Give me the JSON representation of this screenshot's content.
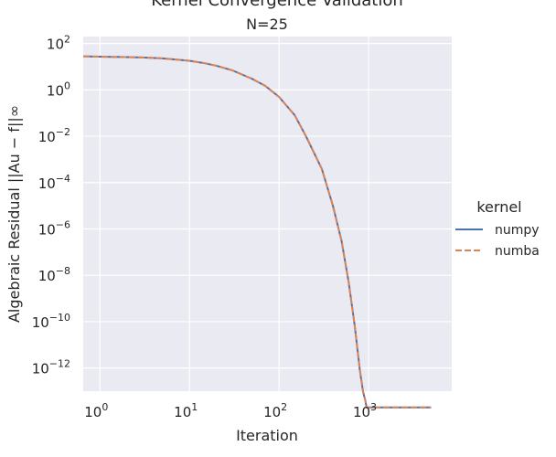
{
  "chart_data": {
    "type": "line",
    "title": "Kernel Convergence Validation",
    "subtitle": "N=25",
    "xlabel": "Iteration",
    "ylabel": "Algebraic Residual ||Au − f||∞",
    "xscale": "log",
    "yscale": "log",
    "xlim": [
      0.65,
      8500
    ],
    "ylim": [
      1e-13,
      200
    ],
    "x_ticks": [
      1,
      10,
      100,
      1000
    ],
    "x_tick_labels": [
      "10",
      "10",
      "10",
      "10"
    ],
    "x_tick_exponents": [
      "0",
      "1",
      "2",
      "3"
    ],
    "y_ticks": [
      100.0,
      1.0,
      0.01,
      0.0001,
      1e-06,
      1e-08,
      1e-10,
      1e-12
    ],
    "y_tick_labels": [
      "10",
      "10",
      "10",
      "10",
      "10",
      "10",
      "10",
      "10"
    ],
    "y_tick_exponents": [
      "2",
      "0",
      "−2",
      "−4",
      "−6",
      "−8",
      "−10",
      "−12"
    ],
    "grid": true,
    "legend": {
      "title": "kernel",
      "placement": "right"
    },
    "series": [
      {
        "name": "numpy",
        "color": "#4c72b0",
        "dash": "solid",
        "x": [
          0.65,
          1,
          2,
          3,
          5,
          10,
          15,
          20,
          30,
          50,
          70,
          100,
          150,
          200,
          300,
          400,
          500,
          600,
          700,
          800,
          870,
          920,
          950,
          1000,
          1100,
          1500,
          2000,
          3000,
          5000
        ],
        "y": [
          28,
          27,
          26,
          25,
          23,
          18,
          14,
          11,
          7,
          3,
          1.5,
          0.5,
          0.08,
          0.01,
          0.0004,
          1e-05,
          3e-07,
          5e-09,
          7e-11,
          8e-13,
          9e-14,
          4e-14,
          2e-14,
          2e-14,
          2e-14,
          2e-14,
          2e-14,
          2e-14,
          2e-14
        ]
      },
      {
        "name": "numba",
        "color": "#dd8452",
        "dash": "dashed",
        "x": [
          0.65,
          1,
          2,
          3,
          5,
          10,
          15,
          20,
          30,
          50,
          70,
          100,
          150,
          200,
          300,
          400,
          500,
          600,
          700,
          800,
          870,
          920,
          950,
          1000,
          1100,
          1500,
          2000,
          3000,
          5000
        ],
        "y": [
          28,
          27,
          26,
          25,
          23,
          18,
          14,
          11,
          7,
          3,
          1.5,
          0.5,
          0.08,
          0.01,
          0.0004,
          1e-05,
          3e-07,
          5e-09,
          7e-11,
          8e-13,
          1e-13,
          4e-14,
          2e-14,
          2e-14,
          2e-14,
          2e-14,
          2e-14,
          2e-14,
          2e-14
        ]
      }
    ]
  }
}
